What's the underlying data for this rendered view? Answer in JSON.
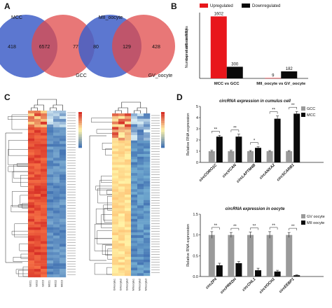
{
  "panels": {
    "a": "A",
    "b": "B",
    "c": "C",
    "d": "D"
  },
  "venn": [
    {
      "left_label": "MCC",
      "right_label": "GCC",
      "left_only": 418,
      "overlap": 6572,
      "right_only": 77,
      "left_color": "#3f5fc8",
      "right_color": "#e04a4a"
    },
    {
      "left_label": "MII_oocyte",
      "right_label": "GV_oocyte",
      "left_only": 80,
      "overlap": 129,
      "right_only": 428,
      "left_color": "#3f5fc8",
      "right_color": "#e04a4a"
    }
  ],
  "colors": {
    "red": "#e8161b",
    "black": "#0a0a0a",
    "grey": "#9a9a9a",
    "heat_red": "#d73027",
    "heat_blue": "#4575b4",
    "heat_yellow": "#fff3a6"
  },
  "heatmap_labels": {
    "left_cols": [
      "GCC1",
      "GCC2",
      "GCC3",
      "MCC1",
      "MCC2",
      "MCC3"
    ],
    "right_cols": [
      "GVoocyte1",
      "GVoocyte2",
      "GVoocyte3",
      "MIIoocyte1",
      "MIIoocyte2",
      "MIIoocyte3"
    ]
  },
  "chart_data": [
    {
      "type": "bar",
      "title": "",
      "ylabel": "Number of differentially expressed circRNAs",
      "categories": [
        "MCC vs GCC",
        "MII_oocyte vs GV_oocyte"
      ],
      "series": [
        {
          "name": "Upregulated",
          "values": [
            1602,
            9
          ],
          "color": "#e8161b"
        },
        {
          "name": "Downregulated",
          "values": [
            300,
            182
          ],
          "color": "#0a0a0a"
        }
      ],
      "ylim": [
        0,
        1700
      ],
      "legend": "top"
    },
    {
      "type": "heatmap",
      "title": "",
      "note": "hierarchically clustered circRNA expression"
    },
    {
      "type": "bar",
      "title": "circRNA expression in cumulus cell",
      "ylabel": "Relative RNA expression",
      "categories": [
        "circCORO1C",
        "circVCAN",
        "circLAPTM4B",
        "circANXA2",
        "circSCARB1"
      ],
      "series": [
        {
          "name": "GCC",
          "values": [
            1.0,
            1.0,
            1.0,
            1.0,
            1.0
          ],
          "errors": [
            0.08,
            0.08,
            0.06,
            0.06,
            0.06
          ],
          "color": "#9a9a9a"
        },
        {
          "name": "MCC",
          "values": [
            2.3,
            2.3,
            1.3,
            3.9,
            4.35
          ],
          "errors": [
            0.12,
            0.22,
            0.1,
            0.25,
            0.2
          ],
          "color": "#0a0a0a"
        }
      ],
      "significance": [
        "**",
        "**",
        "*",
        "**",
        "**"
      ],
      "ylim": [
        0,
        5
      ],
      "yticks": [
        0,
        1,
        2,
        3,
        4,
        5
      ],
      "legend": "top-right"
    },
    {
      "type": "bar",
      "title": "circRNA expression in oocyte",
      "ylabel": "Relative RNA expression",
      "categories": [
        "circZP4",
        "circPRKDH",
        "circCHL1",
        "circVOCH1",
        "circEEBP1"
      ],
      "series": [
        {
          "name": "GV oocyte",
          "values": [
            1.0,
            1.0,
            1.0,
            1.0,
            1.0
          ],
          "errors": [
            0.08,
            0.06,
            0.07,
            0.08,
            0.06
          ],
          "color": "#9a9a9a"
        },
        {
          "name": "MII oocyte",
          "values": [
            0.27,
            0.32,
            0.15,
            0.12,
            0.03
          ],
          "errors": [
            0.05,
            0.04,
            0.05,
            0.03,
            0.01
          ],
          "color": "#0a0a0a"
        }
      ],
      "significance": [
        "**",
        "**",
        "**",
        "**",
        "**"
      ],
      "ylim": [
        0,
        1.5
      ],
      "yticks": [
        0.0,
        0.5,
        1.0,
        1.5
      ],
      "legend": "top-right"
    }
  ]
}
